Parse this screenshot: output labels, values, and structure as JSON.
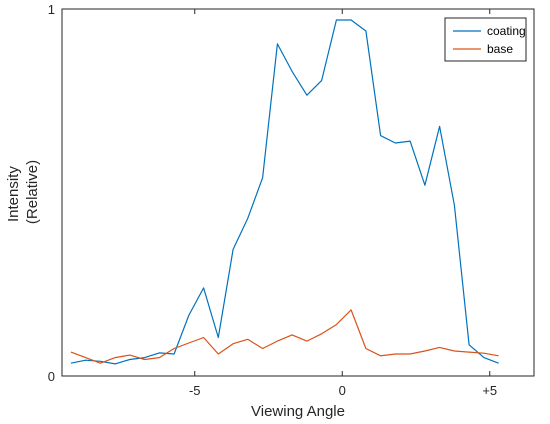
{
  "chart_data": {
    "type": "line",
    "xlabel": "Viewing Angle",
    "ylabel_lines": [
      "Intensity",
      "(Relative)"
    ],
    "xlim": [
      -9.5,
      6.5
    ],
    "ylim": [
      0,
      1
    ],
    "x_ticks": [
      {
        "value": -5,
        "label": "-5"
      },
      {
        "value": 0,
        "label": "0"
      },
      {
        "value": 5,
        "label": "+5"
      }
    ],
    "y_ticks": [
      {
        "value": 0,
        "label": "0"
      },
      {
        "value": 1,
        "label": "1"
      }
    ],
    "grid": false,
    "legend_position": "top-right",
    "series": [
      {
        "name": "coating",
        "color": "#0072BD",
        "points": [
          [
            -9.2,
            0.035
          ],
          [
            -8.7,
            0.043
          ],
          [
            -8.2,
            0.04
          ],
          [
            -7.7,
            0.033
          ],
          [
            -7.2,
            0.045
          ],
          [
            -6.7,
            0.05
          ],
          [
            -6.2,
            0.063
          ],
          [
            -5.7,
            0.06
          ],
          [
            -5.2,
            0.165
          ],
          [
            -4.7,
            0.24
          ],
          [
            -4.2,
            0.105
          ],
          [
            -3.7,
            0.345
          ],
          [
            -3.2,
            0.43
          ],
          [
            -2.7,
            0.54
          ],
          [
            -2.2,
            0.905
          ],
          [
            -1.7,
            0.83
          ],
          [
            -1.2,
            0.765
          ],
          [
            -0.7,
            0.805
          ],
          [
            -0.2,
            0.97
          ],
          [
            0.3,
            0.97
          ],
          [
            0.8,
            0.94
          ],
          [
            1.3,
            0.655
          ],
          [
            1.8,
            0.635
          ],
          [
            2.3,
            0.64
          ],
          [
            2.8,
            0.52
          ],
          [
            3.3,
            0.68
          ],
          [
            3.8,
            0.465
          ],
          [
            4.3,
            0.085
          ],
          [
            4.8,
            0.05
          ],
          [
            5.3,
            0.035
          ]
        ]
      },
      {
        "name": "base",
        "color": "#D95319",
        "points": [
          [
            -9.2,
            0.065
          ],
          [
            -8.7,
            0.05
          ],
          [
            -8.2,
            0.035
          ],
          [
            -7.7,
            0.05
          ],
          [
            -7.2,
            0.057
          ],
          [
            -6.7,
            0.045
          ],
          [
            -6.2,
            0.05
          ],
          [
            -5.7,
            0.075
          ],
          [
            -5.2,
            0.09
          ],
          [
            -4.7,
            0.105
          ],
          [
            -4.2,
            0.06
          ],
          [
            -3.7,
            0.088
          ],
          [
            -3.2,
            0.1
          ],
          [
            -2.7,
            0.075
          ],
          [
            -2.2,
            0.095
          ],
          [
            -1.7,
            0.112
          ],
          [
            -1.2,
            0.095
          ],
          [
            -0.7,
            0.115
          ],
          [
            -0.2,
            0.14
          ],
          [
            0.3,
            0.18
          ],
          [
            0.8,
            0.075
          ],
          [
            1.3,
            0.055
          ],
          [
            1.8,
            0.06
          ],
          [
            2.3,
            0.06
          ],
          [
            2.8,
            0.068
          ],
          [
            3.3,
            0.078
          ],
          [
            3.8,
            0.068
          ],
          [
            4.3,
            0.065
          ],
          [
            4.8,
            0.062
          ],
          [
            5.3,
            0.055
          ]
        ]
      }
    ]
  }
}
